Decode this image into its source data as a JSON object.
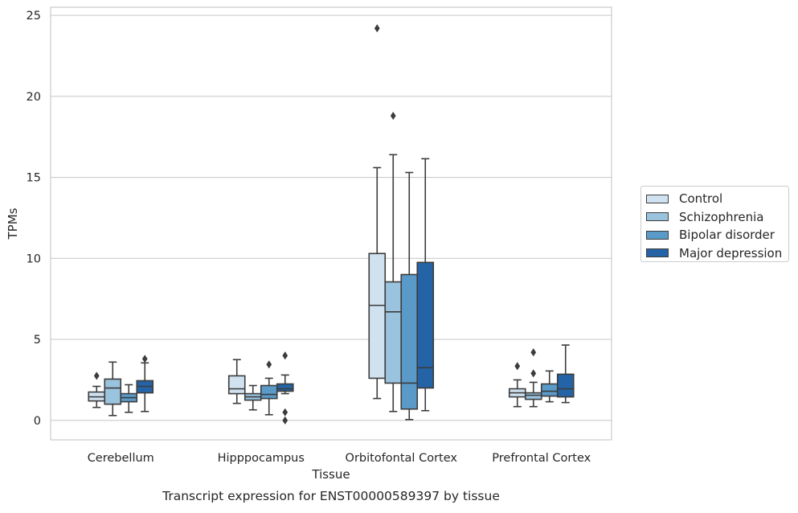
{
  "chart_data": {
    "type": "boxplot",
    "title": "Transcript expression for ENST00000589397 by tissue",
    "xlabel": "Tissue",
    "ylabel": "TPMs",
    "ylim": [
      -1.2,
      25.5
    ],
    "yticks": [
      0,
      5,
      10,
      15,
      20,
      25
    ],
    "grid": "horizontal",
    "legend_position": "right",
    "categories": [
      "Cerebellum",
      "Hipppocampus",
      "Orbitofontal Cortex",
      "Prefrontal Cortex"
    ],
    "series": [
      {
        "name": "Control",
        "color": "#d0e1f0",
        "boxes": [
          {
            "whislo": 0.8,
            "q1": 1.2,
            "med": 1.45,
            "q3": 1.75,
            "whishi": 2.1,
            "fliers": [
              2.75
            ]
          },
          {
            "whislo": 1.05,
            "q1": 1.65,
            "med": 1.95,
            "q3": 2.75,
            "whishi": 3.75,
            "fliers": []
          },
          {
            "whislo": 1.35,
            "q1": 2.6,
            "med": 7.1,
            "q3": 10.3,
            "whishi": 15.6,
            "fliers": [
              24.2
            ]
          },
          {
            "whislo": 0.85,
            "q1": 1.45,
            "med": 1.7,
            "q3": 1.95,
            "whishi": 2.5,
            "fliers": [
              3.35
            ]
          }
        ]
      },
      {
        "name": "Schizophrenia",
        "color": "#9ac3de",
        "boxes": [
          {
            "whislo": 0.3,
            "q1": 1.0,
            "med": 2.0,
            "q3": 2.55,
            "whishi": 3.6,
            "fliers": []
          },
          {
            "whislo": 0.65,
            "q1": 1.25,
            "med": 1.45,
            "q3": 1.65,
            "whishi": 2.15,
            "fliers": []
          },
          {
            "whislo": 0.55,
            "q1": 2.3,
            "med": 6.7,
            "q3": 8.55,
            "whishi": 16.4,
            "fliers": [
              18.8
            ]
          },
          {
            "whislo": 0.85,
            "q1": 1.3,
            "med": 1.55,
            "q3": 1.7,
            "whishi": 2.35,
            "fliers": [
              2.9,
              4.2
            ]
          }
        ]
      },
      {
        "name": "Bipolar disorder",
        "color": "#5a9ac9",
        "boxes": [
          {
            "whislo": 0.5,
            "q1": 1.15,
            "med": 1.4,
            "q3": 1.65,
            "whishi": 2.2,
            "fliers": []
          },
          {
            "whislo": 0.35,
            "q1": 1.35,
            "med": 1.6,
            "q3": 2.15,
            "whishi": 2.6,
            "fliers": [
              3.45
            ]
          },
          {
            "whislo": 0.05,
            "q1": 0.7,
            "med": 2.3,
            "q3": 9.0,
            "whishi": 15.3,
            "fliers": []
          },
          {
            "whislo": 1.15,
            "q1": 1.5,
            "med": 1.8,
            "q3": 2.25,
            "whishi": 3.05,
            "fliers": []
          }
        ]
      },
      {
        "name": "Major depression",
        "color": "#2464a6",
        "boxes": [
          {
            "whislo": 0.55,
            "q1": 1.7,
            "med": 2.1,
            "q3": 2.45,
            "whishi": 3.55,
            "fliers": [
              3.8
            ]
          },
          {
            "whislo": 1.65,
            "q1": 1.8,
            "med": 1.95,
            "q3": 2.25,
            "whishi": 2.8,
            "fliers": [
              4.0,
              0.5,
              0.0
            ]
          },
          {
            "whislo": 0.6,
            "q1": 2.0,
            "med": 3.25,
            "q3": 9.75,
            "whishi": 16.15,
            "fliers": []
          },
          {
            "whislo": 1.1,
            "q1": 1.45,
            "med": 1.95,
            "q3": 2.85,
            "whishi": 4.65,
            "fliers": []
          }
        ]
      }
    ]
  }
}
